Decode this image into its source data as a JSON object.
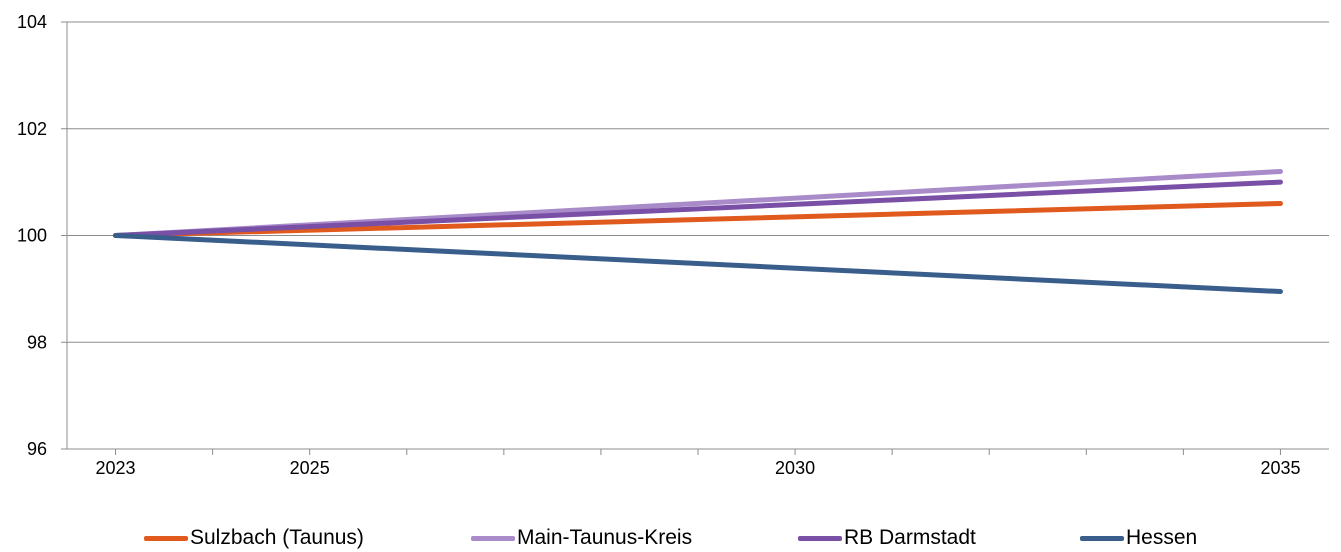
{
  "chart_data": {
    "type": "line",
    "title": "",
    "xlabel": "",
    "ylabel": "",
    "x": [
      2023,
      2035
    ],
    "xlim": [
      2022.5,
      2035.5
    ],
    "x_ticks": [
      2023,
      2025,
      2030,
      2035
    ],
    "x_ticks_minor": [
      2023,
      2024,
      2025,
      2026,
      2027,
      2028,
      2029,
      2030,
      2031,
      2032,
      2033,
      2034,
      2035
    ],
    "ylim": [
      96,
      104
    ],
    "y_ticks": [
      96,
      98,
      100,
      102,
      104
    ],
    "grid": "horizontal",
    "legend_position": "bottom",
    "series": [
      {
        "name": "Sulzbach (Taunus)",
        "color": "#E05A1E",
        "values": [
          100,
          100.6
        ]
      },
      {
        "name": "Main-Taunus-Kreis",
        "color": "#A98BC9",
        "values": [
          100,
          101.2
        ]
      },
      {
        "name": "RB Darmstadt",
        "color": "#7A4FA6",
        "values": [
          100,
          101.0
        ]
      },
      {
        "name": "Hessen",
        "color": "#3A5E8C",
        "values": [
          100,
          98.95
        ]
      }
    ]
  }
}
